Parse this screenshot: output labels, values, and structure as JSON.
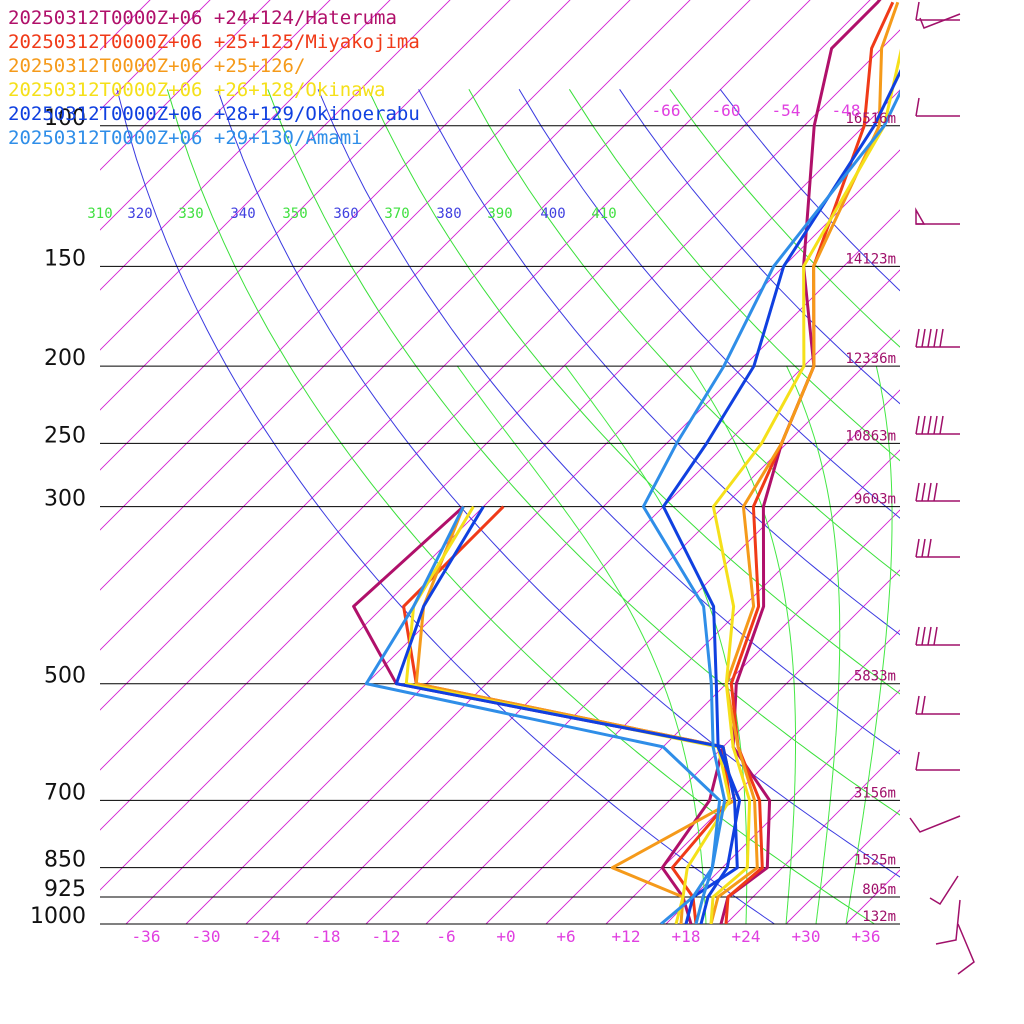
{
  "chart_data": {
    "type": "line",
    "legend": [
      {
        "label": "20250312T0000Z+06 +24+124/Hateruma",
        "color": "#b0106a"
      },
      {
        "label": "20250312T0000Z+06 +25+125/Miyakojima",
        "color": "#f03a18"
      },
      {
        "label": "20250312T0000Z+06 +25+126/",
        "color": "#f59a1a"
      },
      {
        "label": "20250312T0000Z+06 +26+128/Okinawa",
        "color": "#f5e01a"
      },
      {
        "label": "20250312T0000Z+06 +28+129/Okinoerabu",
        "color": "#1040e0"
      },
      {
        "label": "20250312T0000Z+06 +29+130/Amami",
        "color": "#2f8ee8"
      }
    ],
    "pressure_levels": [
      {
        "label": "100",
        "p": 100,
        "height": "16516m"
      },
      {
        "label": "150",
        "p": 150,
        "height": "14123m"
      },
      {
        "label": "200",
        "p": 200,
        "height": "12336m"
      },
      {
        "label": "250",
        "p": 250,
        "height": "10863m"
      },
      {
        "label": "300",
        "p": 300,
        "height": "9603m"
      },
      {
        "label": "500",
        "p": 500,
        "height": "5833m"
      },
      {
        "label": "700",
        "p": 700,
        "height": "3156m"
      },
      {
        "label": "850",
        "p": 850,
        "height": "1525m"
      },
      {
        "label": "925",
        "p": 925,
        "height": "805m"
      },
      {
        "label": "1000",
        "p": 1000,
        "height": "132m"
      }
    ],
    "temperature_ticks": [
      "-36",
      "-30",
      "-24",
      "-18",
      "-12",
      "-6",
      "+0",
      "+6",
      "+12",
      "+18",
      "+24",
      "+30",
      "+36"
    ],
    "upper_isotherm_labels": [
      "-66",
      "-60",
      "-54",
      "-48"
    ],
    "theta_labels": [
      {
        "text": "310",
        "color": "#40e040"
      },
      {
        "text": "320",
        "color": "#4040e0"
      },
      {
        "text": "330",
        "color": "#40e040"
      },
      {
        "text": "340",
        "color": "#4040e0"
      },
      {
        "text": "350",
        "color": "#40e040"
      },
      {
        "text": "360",
        "color": "#4040e0"
      },
      {
        "text": "370",
        "color": "#40e040"
      },
      {
        "text": "380",
        "color": "#4040e0"
      },
      {
        "text": "390",
        "color": "#40e040"
      },
      {
        "text": "400",
        "color": "#4040e0"
      },
      {
        "text": "410",
        "color": "#40e040"
      }
    ],
    "series": [
      {
        "name": "20250312T0000Z+06 +24+124/Hateruma",
        "temperature": [
          [
            1000,
            21.5
          ],
          [
            925,
            19.5
          ],
          [
            850,
            20.5
          ],
          [
            700,
            14
          ],
          [
            600,
            5
          ],
          [
            500,
            -1
          ],
          [
            400,
            -6
          ],
          [
            300,
            -16
          ],
          [
            250,
            -20.5
          ],
          [
            200,
            -25
          ],
          [
            150,
            -36
          ],
          [
            100,
            -49
          ],
          [
            80,
            -55
          ],
          [
            70,
            -55
          ],
          [
            60,
            -56
          ]
        ],
        "dewpoint": [
          [
            1000,
            18.5
          ],
          [
            925,
            15
          ],
          [
            850,
            10
          ],
          [
            700,
            8
          ],
          [
            600,
            4
          ],
          [
            500,
            -35
          ],
          [
            400,
            -47
          ],
          [
            300,
            -46
          ]
        ]
      },
      {
        "name": "20250312T0000Z+06 +25+125/Miyakojima",
        "temperature": [
          [
            1000,
            22
          ],
          [
            925,
            19.5
          ],
          [
            850,
            20
          ],
          [
            700,
            13
          ],
          [
            600,
            5.5
          ],
          [
            500,
            -1.5
          ],
          [
            400,
            -6.5
          ],
          [
            300,
            -17
          ],
          [
            250,
            -20.5
          ],
          [
            200,
            -25
          ],
          [
            150,
            -35
          ],
          [
            100,
            -44
          ],
          [
            80,
            -51
          ],
          [
            70,
            -53.5
          ]
        ],
        "dewpoint": [
          [
            1000,
            19
          ],
          [
            925,
            16
          ],
          [
            850,
            11
          ],
          [
            700,
            10
          ],
          [
            600,
            4
          ],
          [
            500,
            -33
          ],
          [
            400,
            -42
          ],
          [
            300,
            -42
          ]
        ]
      },
      {
        "name": "20250312T0000Z+06 +25+126/",
        "temperature": [
          [
            1000,
            20.5
          ],
          [
            925,
            18.5
          ],
          [
            850,
            19.5
          ],
          [
            700,
            12.5
          ],
          [
            600,
            5.5
          ],
          [
            500,
            -2
          ],
          [
            400,
            -7
          ],
          [
            300,
            -18
          ],
          [
            250,
            -20.5
          ],
          [
            200,
            -25
          ],
          [
            150,
            -35
          ],
          [
            100,
            -42.5
          ],
          [
            80,
            -50
          ],
          [
            70,
            -53
          ]
        ],
        "dewpoint": [
          [
            1000,
            17.5
          ],
          [
            925,
            15
          ],
          [
            850,
            5
          ],
          [
            700,
            10.5
          ],
          [
            600,
            4
          ],
          [
            500,
            -33
          ],
          [
            400,
            -40
          ],
          [
            300,
            -46
          ]
        ]
      },
      {
        "name": "20250312T0000Z+06 +26+128/Okinawa",
        "temperature": [
          [
            1000,
            20.5
          ],
          [
            925,
            18
          ],
          [
            850,
            18.5
          ],
          [
            700,
            12
          ],
          [
            600,
            5
          ],
          [
            500,
            -2
          ],
          [
            400,
            -9
          ],
          [
            300,
            -21
          ],
          [
            250,
            -22.5
          ],
          [
            200,
            -26
          ],
          [
            150,
            -36
          ],
          [
            100,
            -42
          ],
          [
            80,
            -48
          ],
          [
            70,
            -52
          ]
        ],
        "dewpoint": [
          [
            1000,
            17
          ],
          [
            925,
            15
          ],
          [
            850,
            12.5
          ],
          [
            700,
            10
          ],
          [
            600,
            3.5
          ],
          [
            500,
            -34
          ],
          [
            400,
            -41
          ],
          [
            300,
            -45
          ]
        ]
      },
      {
        "name": "20250312T0000Z+06 +28+129/Okinoerabu",
        "temperature": [
          [
            1000,
            19.5
          ],
          [
            925,
            17.5
          ],
          [
            850,
            16.5
          ],
          [
            700,
            11
          ],
          [
            600,
            3.5
          ],
          [
            500,
            -3
          ],
          [
            400,
            -11
          ],
          [
            300,
            -26
          ],
          [
            250,
            -28
          ],
          [
            200,
            -31
          ],
          [
            150,
            -38
          ],
          [
            100,
            -43
          ],
          [
            80,
            -47
          ],
          [
            70,
            -51
          ]
        ],
        "dewpoint": [
          [
            1000,
            18
          ],
          [
            925,
            16
          ],
          [
            850,
            17.5
          ],
          [
            700,
            10.5
          ],
          [
            600,
            4
          ],
          [
            500,
            -35
          ],
          [
            400,
            -40
          ],
          [
            300,
            -44
          ]
        ]
      },
      {
        "name": "20250312T0000Z+06 +29+130/Amami",
        "temperature": [
          [
            1000,
            19
          ],
          [
            925,
            17
          ],
          [
            850,
            15
          ],
          [
            700,
            9.5
          ],
          [
            600,
            3
          ],
          [
            500,
            -3.5
          ],
          [
            400,
            -12
          ],
          [
            300,
            -28
          ],
          [
            250,
            -31
          ],
          [
            200,
            -34
          ],
          [
            150,
            -39
          ],
          [
            100,
            -42
          ],
          [
            80,
            -46
          ],
          [
            70,
            -49.5
          ]
        ],
        "dewpoint": [
          [
            1000,
            15.5
          ],
          [
            925,
            16
          ],
          [
            850,
            15
          ],
          [
            700,
            9
          ],
          [
            600,
            -2
          ],
          [
            500,
            -38
          ],
          [
            400,
            -41
          ],
          [
            300,
            -46
          ]
        ]
      }
    ]
  }
}
